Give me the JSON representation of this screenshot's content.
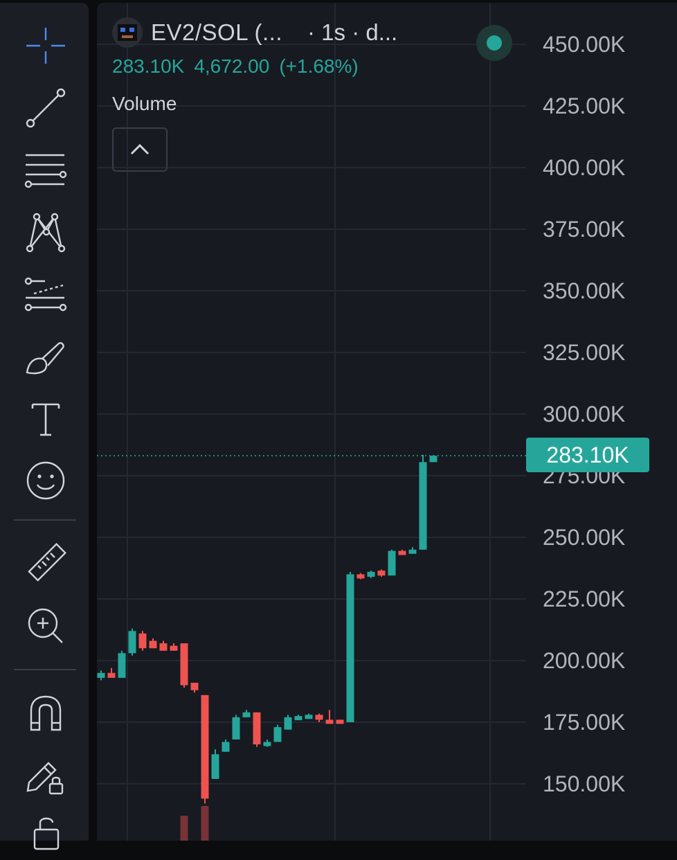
{
  "toolbar": {
    "tools": [
      {
        "name": "crosshair-icon"
      },
      {
        "name": "trend-line-icon"
      },
      {
        "name": "horizontal-lines-icon"
      },
      {
        "name": "pattern-icon"
      },
      {
        "name": "forecast-icon"
      },
      {
        "name": "brush-icon"
      },
      {
        "name": "text-icon"
      },
      {
        "name": "emoji-icon"
      },
      {
        "name": "ruler-icon"
      },
      {
        "name": "zoom-in-icon"
      },
      {
        "name": "magnet-icon"
      },
      {
        "name": "lock-drawing-icon"
      },
      {
        "name": "unlock-icon"
      }
    ]
  },
  "header": {
    "symbol": "EV2/SOL (...",
    "interval": "· 1s · d...",
    "last_price": "283.10K",
    "change": "4,672.00",
    "change_pct": "(+1.68%)",
    "volume_label": "Volume",
    "status": "live"
  },
  "colors": {
    "up": "#26a69a",
    "down": "#ef5350",
    "background": "#171a21",
    "toolbar": "#1b1e25"
  },
  "price_axis": {
    "ticks": [
      "450.00K",
      "425.00K",
      "400.00K",
      "375.00K",
      "350.00K",
      "325.00K",
      "300.00K",
      "275.00K",
      "250.00K",
      "225.00K",
      "200.00K",
      "175.00K",
      "150.00K"
    ],
    "last_price_label": "283.10K"
  },
  "chart_data": {
    "type": "candlestick",
    "symbol": "EV2/SOL",
    "interval": "1s",
    "y_range": [
      140000,
      460000
    ],
    "last_price": 283100,
    "candles": [
      {
        "o": 193000,
        "h": 196000,
        "l": 192000,
        "c": 195000
      },
      {
        "o": 195000,
        "h": 197000,
        "l": 194000,
        "c": 193000
      },
      {
        "o": 193000,
        "h": 204000,
        "l": 193000,
        "c": 203000
      },
      {
        "o": 203000,
        "h": 213000,
        "l": 202000,
        "c": 212000
      },
      {
        "o": 211000,
        "h": 212000,
        "l": 204000,
        "c": 205000
      },
      {
        "o": 208000,
        "h": 209000,
        "l": 205000,
        "c": 205000
      },
      {
        "o": 207000,
        "h": 208000,
        "l": 204000,
        "c": 204000
      },
      {
        "o": 206000,
        "h": 207000,
        "l": 204000,
        "c": 204000
      },
      {
        "o": 207000,
        "h": 207000,
        "l": 189000,
        "c": 190000
      },
      {
        "o": 191000,
        "h": 191000,
        "l": 187000,
        "c": 188000
      },
      {
        "o": 186000,
        "h": 186000,
        "l": 142000,
        "c": 144000
      },
      {
        "o": 152000,
        "h": 164000,
        "l": 152000,
        "c": 162000
      },
      {
        "o": 163000,
        "h": 168000,
        "l": 163000,
        "c": 167000
      },
      {
        "o": 168000,
        "h": 178000,
        "l": 168000,
        "c": 177000
      },
      {
        "o": 177000,
        "h": 180000,
        "l": 177000,
        "c": 179000
      },
      {
        "o": 179000,
        "h": 179000,
        "l": 165000,
        "c": 166000
      },
      {
        "o": 166000,
        "h": 168000,
        "l": 165000,
        "c": 167000
      },
      {
        "o": 167000,
        "h": 174000,
        "l": 167000,
        "c": 173000
      },
      {
        "o": 172000,
        "h": 178000,
        "l": 172000,
        "c": 177000
      },
      {
        "o": 177000,
        "h": 178000,
        "l": 176000,
        "c": 177500
      },
      {
        "o": 177500,
        "h": 178500,
        "l": 177000,
        "c": 178000
      },
      {
        "o": 178000,
        "h": 178500,
        "l": 175000,
        "c": 176000
      },
      {
        "o": 176000,
        "h": 180000,
        "l": 175000,
        "c": 175500
      },
      {
        "o": 176000,
        "h": 176000,
        "l": 175000,
        "c": 175000
      },
      {
        "o": 175000,
        "h": 236000,
        "l": 175000,
        "c": 235000
      },
      {
        "o": 235000,
        "h": 235500,
        "l": 233000,
        "c": 234000
      },
      {
        "o": 234000,
        "h": 236500,
        "l": 233500,
        "c": 236000
      },
      {
        "o": 236500,
        "h": 237000,
        "l": 234000,
        "c": 234500
      },
      {
        "o": 234500,
        "h": 245000,
        "l": 234500,
        "c": 244500
      },
      {
        "o": 244500,
        "h": 245000,
        "l": 243500,
        "c": 244000
      },
      {
        "o": 244000,
        "h": 246000,
        "l": 243500,
        "c": 245000
      },
      {
        "o": 245000,
        "h": 283500,
        "l": 245000,
        "c": 280500
      },
      {
        "o": 280500,
        "h": 283300,
        "l": 280500,
        "c": 283100
      }
    ],
    "volume": [
      {
        "index": 8,
        "value": 0.55,
        "up": false
      },
      {
        "index": 10,
        "value": 0.9,
        "up": false
      }
    ]
  }
}
